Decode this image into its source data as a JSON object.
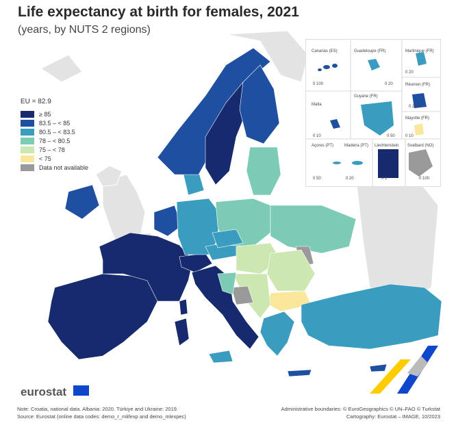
{
  "title": "Life expectancy at birth for females, 2021",
  "subtitle": "(years, by NUTS 2 regions)",
  "legend": {
    "eu_label": "EU = 82.9",
    "classes": [
      {
        "label": "≥ 85",
        "color": "#172a6e"
      },
      {
        "label": "83.5 – < 85",
        "color": "#1f4fa0"
      },
      {
        "label": "80.5 – < 83.5",
        "color": "#3a9dc0"
      },
      {
        "label": "78 – < 80.5",
        "color": "#7ccbb5"
      },
      {
        "label": "75 – < 78",
        "color": "#cce8b0"
      },
      {
        "label": "< 75",
        "color": "#fbe79c"
      },
      {
        "label": "Data not available",
        "color": "#9a9a9a"
      }
    ]
  },
  "insets": {
    "canarias": "Canarias (ES)",
    "guadeloupe": "Guadeloupe (FR)",
    "martinique": "Martinique (FR)",
    "reunion": "Réunion (FR)",
    "malta": "Malta",
    "guyane": "Guyane (FR)",
    "mayotte": "Mayotte (FR)",
    "acores": "Açores (PT)",
    "madeira": "Madeira (PT)",
    "liechtenstein": "Liechtenstein",
    "svalbard": "Svalbard (NO)",
    "scale_0_100": "0 100",
    "scale_0_20": "0 20",
    "scale_0_50": "0 50",
    "scale_0_10": "0 10",
    "scale_0_1": "0 1",
    "scale_0_100b": "0 100"
  },
  "brand": "eurostat",
  "footer": {
    "note": "Note: Croatia, national data. Albania: 2020. Türkiye and Ukraine: 2019.",
    "source": "Source: Eurostat (online data codes: demo_r_mlifexp and demo_mlexpec)",
    "boundaries": "Administrative boundaries: © EuroGeographics © UN–FAO © Turkstat",
    "cartography": "Cartography: Eurostat – IMAGE, 10/2023"
  }
}
